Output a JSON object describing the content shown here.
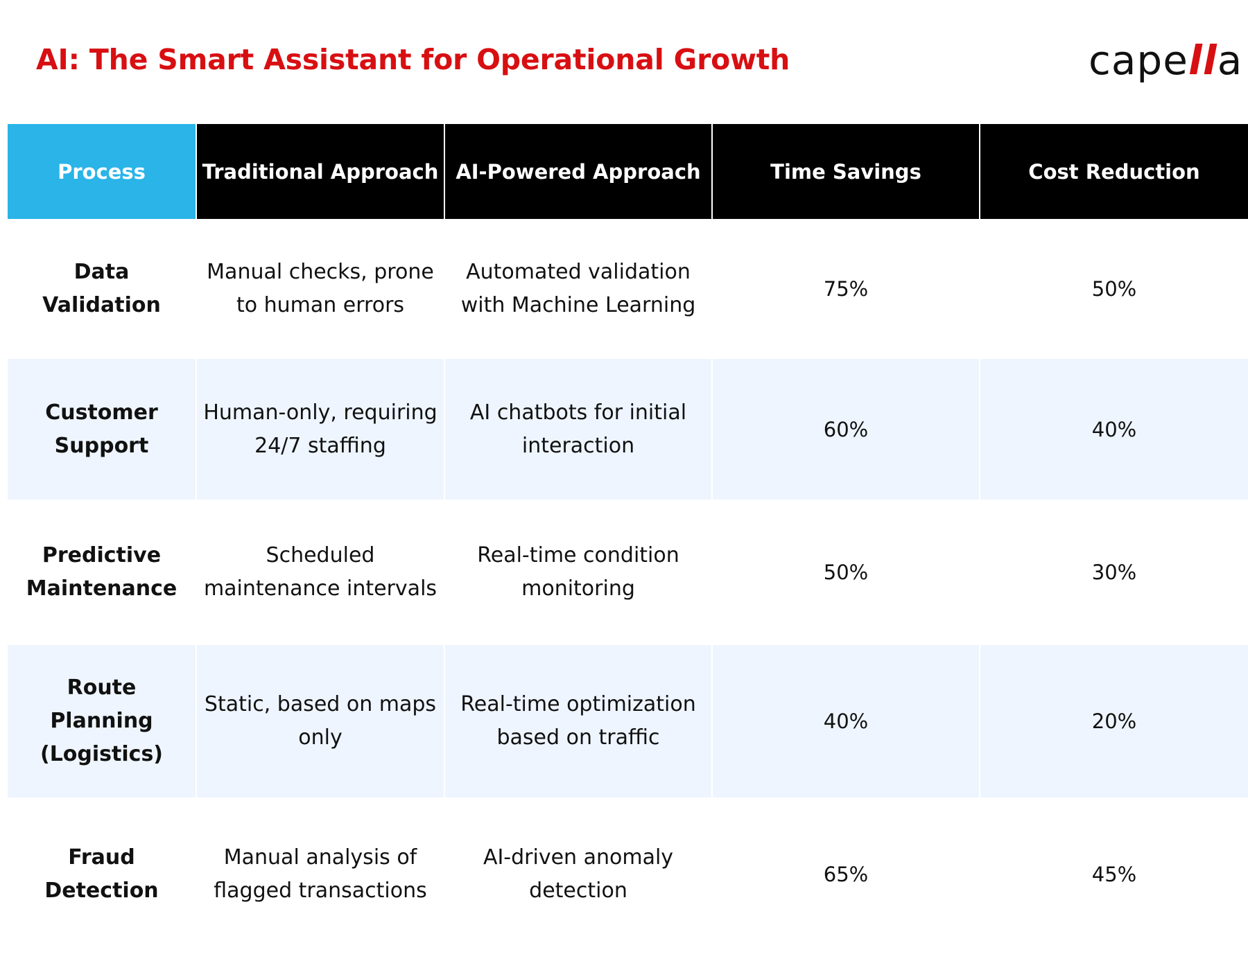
{
  "header": {
    "title": "AI: The Smart Assistant for Operational Growth",
    "logo_main": "cape",
    "logo_accent": "ll",
    "logo_end": "a"
  },
  "table": {
    "columns": [
      "Process",
      "Traditional Approach",
      "AI-Powered Approach",
      "Time Savings",
      "Cost Reduction"
    ],
    "rows": [
      {
        "process": "Data Validation",
        "traditional": "Manual checks, prone to human errors",
        "ai": "Automated validation with Machine Learning",
        "time_savings": "75%",
        "cost_reduction": "50%"
      },
      {
        "process": "Customer Support",
        "traditional": "Human-only, requiring 24/7 staffing",
        "ai": "AI chatbots for initial interaction",
        "time_savings": "60%",
        "cost_reduction": "40%"
      },
      {
        "process": "Predictive Maintenance",
        "traditional": "Scheduled maintenance intervals",
        "ai": "Real-time condition monitoring",
        "time_savings": "50%",
        "cost_reduction": "30%"
      },
      {
        "process": "Route Planning (Logistics)",
        "traditional": "Static, based on maps only",
        "ai": "Real-time optimization based on traffic",
        "time_savings": "40%",
        "cost_reduction": "20%"
      },
      {
        "process": "Fraud Detection",
        "traditional": "Manual analysis of flagged transactions",
        "ai": "AI-driven anomaly detection",
        "time_savings": "65%",
        "cost_reduction": "45%"
      }
    ]
  },
  "colors": {
    "title": "#d80f12",
    "logo_accent": "#d80f12",
    "process_header": "#2ab4e8",
    "header": "#000000",
    "shaded_row": "#eef5fe"
  }
}
